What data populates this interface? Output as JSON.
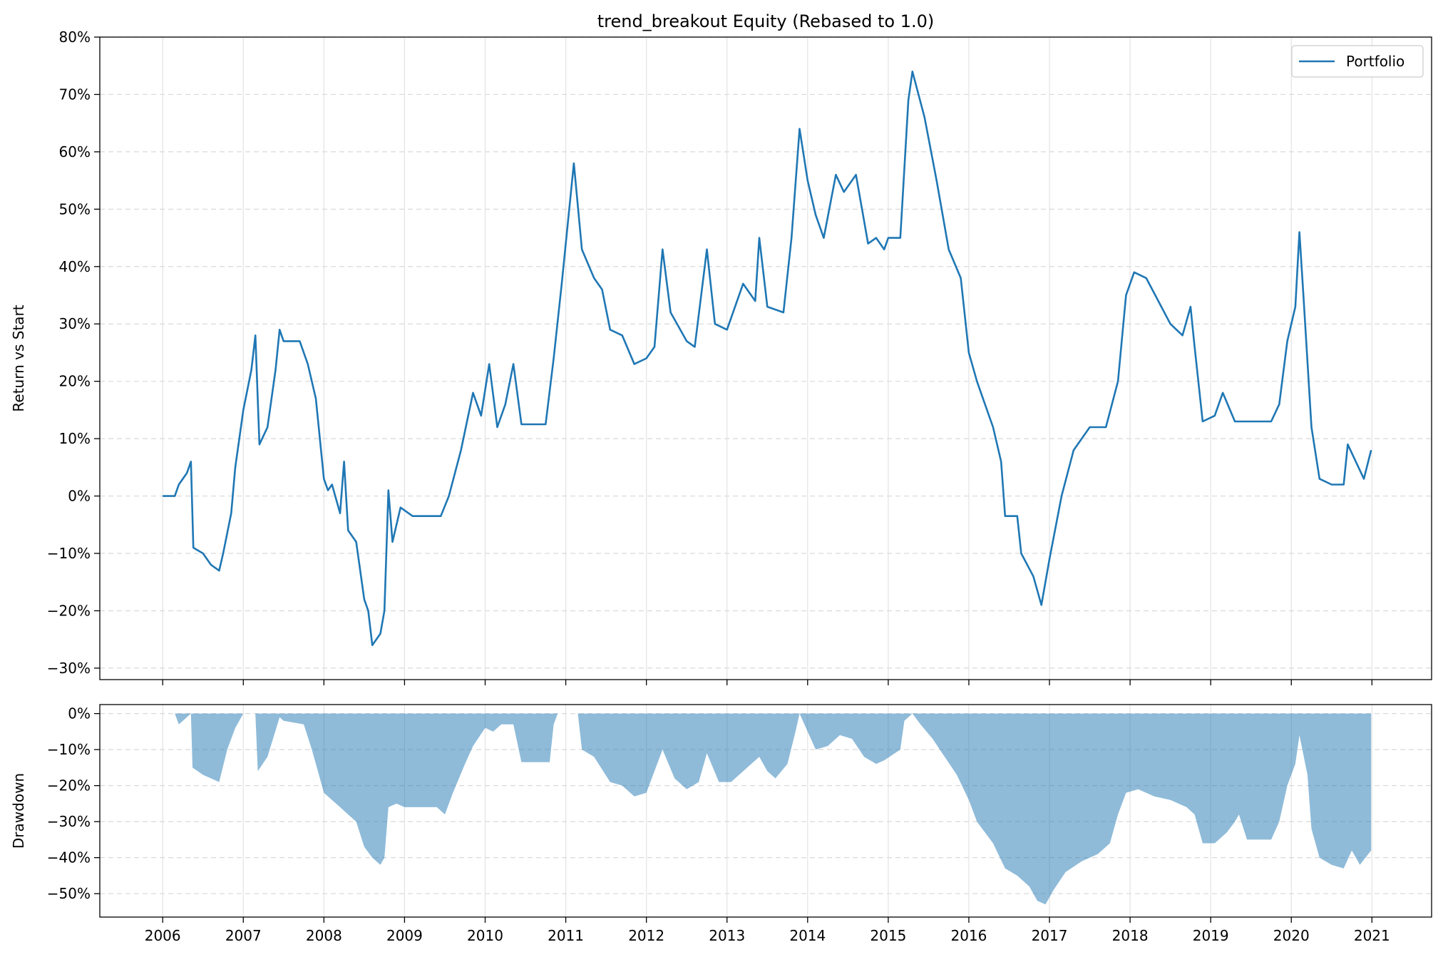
{
  "chart_data": [
    {
      "type": "line",
      "title": "trend_breakout Equity (Rebased to 1.0)",
      "xlabel": "",
      "ylabel": "Return vs Start",
      "ylim": [
        -0.32,
        0.8
      ],
      "xlim": [
        2005.22,
        2021.74
      ],
      "grid": true,
      "legend_position": "top-right",
      "y_ticks": [
        -0.3,
        -0.2,
        -0.1,
        0.0,
        0.1,
        0.2,
        0.3,
        0.4,
        0.5,
        0.6,
        0.7,
        0.8
      ],
      "y_tick_labels": [
        "−30%",
        "−20%",
        "−10%",
        "0%",
        "10%",
        "20%",
        "30%",
        "40%",
        "50%",
        "60%",
        "70%",
        "80%"
      ],
      "series": [
        {
          "name": "Portfolio",
          "color": "#1f77b4",
          "points": [
            [
              2006.0,
              0.0
            ],
            [
              2006.15,
              0.0
            ],
            [
              2006.2,
              0.02
            ],
            [
              2006.3,
              0.04
            ],
            [
              2006.35,
              0.06
            ],
            [
              2006.38,
              -0.09
            ],
            [
              2006.5,
              -0.1
            ],
            [
              2006.6,
              -0.12
            ],
            [
              2006.7,
              -0.13
            ],
            [
              2006.75,
              -0.1
            ],
            [
              2006.85,
              -0.03
            ],
            [
              2006.9,
              0.05
            ],
            [
              2007.0,
              0.15
            ],
            [
              2007.1,
              0.22
            ],
            [
              2007.15,
              0.28
            ],
            [
              2007.2,
              0.09
            ],
            [
              2007.3,
              0.12
            ],
            [
              2007.4,
              0.22
            ],
            [
              2007.45,
              0.29
            ],
            [
              2007.5,
              0.27
            ],
            [
              2007.7,
              0.27
            ],
            [
              2007.8,
              0.23
            ],
            [
              2007.9,
              0.17
            ],
            [
              2008.0,
              0.03
            ],
            [
              2008.05,
              0.01
            ],
            [
              2008.1,
              0.02
            ],
            [
              2008.2,
              -0.03
            ],
            [
              2008.25,
              0.06
            ],
            [
              2008.3,
              -0.06
            ],
            [
              2008.4,
              -0.08
            ],
            [
              2008.5,
              -0.18
            ],
            [
              2008.55,
              -0.2
            ],
            [
              2008.6,
              -0.26
            ],
            [
              2008.7,
              -0.24
            ],
            [
              2008.75,
              -0.2
            ],
            [
              2008.8,
              0.01
            ],
            [
              2008.85,
              -0.08
            ],
            [
              2008.95,
              -0.02
            ],
            [
              2009.1,
              -0.035
            ],
            [
              2009.45,
              -0.035
            ],
            [
              2009.55,
              0.0
            ],
            [
              2009.7,
              0.08
            ],
            [
              2009.85,
              0.18
            ],
            [
              2009.95,
              0.14
            ],
            [
              2010.05,
              0.23
            ],
            [
              2010.15,
              0.12
            ],
            [
              2010.25,
              0.16
            ],
            [
              2010.35,
              0.23
            ],
            [
              2010.45,
              0.125
            ],
            [
              2010.75,
              0.125
            ],
            [
              2010.85,
              0.24
            ],
            [
              2010.95,
              0.37
            ],
            [
              2011.1,
              0.58
            ],
            [
              2011.2,
              0.43
            ],
            [
              2011.35,
              0.38
            ],
            [
              2011.45,
              0.36
            ],
            [
              2011.55,
              0.29
            ],
            [
              2011.7,
              0.28
            ],
            [
              2011.85,
              0.23
            ],
            [
              2012.0,
              0.24
            ],
            [
              2012.1,
              0.26
            ],
            [
              2012.2,
              0.43
            ],
            [
              2012.3,
              0.32
            ],
            [
              2012.5,
              0.27
            ],
            [
              2012.6,
              0.26
            ],
            [
              2012.75,
              0.43
            ],
            [
              2012.85,
              0.3
            ],
            [
              2013.0,
              0.29
            ],
            [
              2013.2,
              0.37
            ],
            [
              2013.35,
              0.34
            ],
            [
              2013.4,
              0.45
            ],
            [
              2013.5,
              0.33
            ],
            [
              2013.7,
              0.32
            ],
            [
              2013.8,
              0.45
            ],
            [
              2013.9,
              0.64
            ],
            [
              2014.0,
              0.55
            ],
            [
              2014.1,
              0.49
            ],
            [
              2014.2,
              0.45
            ],
            [
              2014.35,
              0.56
            ],
            [
              2014.45,
              0.53
            ],
            [
              2014.6,
              0.56
            ],
            [
              2014.75,
              0.44
            ],
            [
              2014.85,
              0.45
            ],
            [
              2014.95,
              0.43
            ],
            [
              2015.0,
              0.45
            ],
            [
              2015.15,
              0.45
            ],
            [
              2015.25,
              0.69
            ],
            [
              2015.3,
              0.74
            ],
            [
              2015.45,
              0.66
            ],
            [
              2015.6,
              0.55
            ],
            [
              2015.75,
              0.43
            ],
            [
              2015.9,
              0.38
            ],
            [
              2016.0,
              0.25
            ],
            [
              2016.1,
              0.2
            ],
            [
              2016.2,
              0.16
            ],
            [
              2016.3,
              0.12
            ],
            [
              2016.4,
              0.06
            ],
            [
              2016.45,
              -0.035
            ],
            [
              2016.6,
              -0.035
            ],
            [
              2016.65,
              -0.1
            ],
            [
              2016.8,
              -0.14
            ],
            [
              2016.9,
              -0.19
            ],
            [
              2017.0,
              -0.11
            ],
            [
              2017.15,
              0.0
            ],
            [
              2017.3,
              0.08
            ],
            [
              2017.5,
              0.12
            ],
            [
              2017.7,
              0.12
            ],
            [
              2017.85,
              0.2
            ],
            [
              2017.95,
              0.35
            ],
            [
              2018.05,
              0.39
            ],
            [
              2018.2,
              0.38
            ],
            [
              2018.35,
              0.34
            ],
            [
              2018.5,
              0.3
            ],
            [
              2018.65,
              0.28
            ],
            [
              2018.75,
              0.33
            ],
            [
              2018.8,
              0.26
            ],
            [
              2018.9,
              0.13
            ],
            [
              2019.05,
              0.14
            ],
            [
              2019.15,
              0.18
            ],
            [
              2019.3,
              0.13
            ],
            [
              2019.45,
              0.13
            ],
            [
              2019.6,
              0.13
            ],
            [
              2019.75,
              0.13
            ],
            [
              2019.85,
              0.16
            ],
            [
              2019.95,
              0.27
            ],
            [
              2020.05,
              0.33
            ],
            [
              2020.1,
              0.46
            ],
            [
              2020.15,
              0.35
            ],
            [
              2020.25,
              0.12
            ],
            [
              2020.35,
              0.03
            ],
            [
              2020.5,
              0.02
            ],
            [
              2020.65,
              0.02
            ],
            [
              2020.7,
              0.09
            ],
            [
              2020.8,
              0.06
            ],
            [
              2020.9,
              0.03
            ],
            [
              2020.99,
              0.08
            ]
          ]
        }
      ]
    },
    {
      "type": "area",
      "title": "",
      "xlabel": "",
      "ylabel": "Drawdown",
      "ylim": [
        -0.565,
        0.025
      ],
      "xlim": [
        2005.22,
        2021.74
      ],
      "grid": true,
      "y_ticks": [
        -0.5,
        -0.4,
        -0.3,
        -0.2,
        -0.1,
        0.0
      ],
      "y_tick_labels": [
        "−50%",
        "−40%",
        "−30%",
        "−20%",
        "−10%",
        "0%"
      ],
      "x_ticks": [
        2006,
        2007,
        2008,
        2009,
        2010,
        2011,
        2012,
        2013,
        2014,
        2015,
        2016,
        2017,
        2018,
        2019,
        2020,
        2021
      ],
      "x_tick_labels": [
        "2006",
        "2007",
        "2008",
        "2009",
        "2010",
        "2011",
        "2012",
        "2013",
        "2014",
        "2015",
        "2016",
        "2017",
        "2018",
        "2019",
        "2020",
        "2021"
      ],
      "series": [
        {
          "name": "",
          "color": "#1f77b4",
          "fill_opacity": 0.5,
          "points": [
            [
              2006.0,
              0.0
            ],
            [
              2006.15,
              0.0
            ],
            [
              2006.2,
              -0.03
            ],
            [
              2006.35,
              0.0
            ],
            [
              2006.37,
              -0.15
            ],
            [
              2006.5,
              -0.17
            ],
            [
              2006.7,
              -0.19
            ],
            [
              2006.8,
              -0.1
            ],
            [
              2006.9,
              -0.04
            ],
            [
              2007.0,
              0.0
            ],
            [
              2007.15,
              0.0
            ],
            [
              2007.18,
              -0.16
            ],
            [
              2007.3,
              -0.12
            ],
            [
              2007.45,
              -0.01
            ],
            [
              2007.5,
              -0.02
            ],
            [
              2007.75,
              -0.03
            ],
            [
              2007.85,
              -0.1
            ],
            [
              2007.95,
              -0.18
            ],
            [
              2008.0,
              -0.22
            ],
            [
              2008.2,
              -0.26
            ],
            [
              2008.3,
              -0.28
            ],
            [
              2008.4,
              -0.3
            ],
            [
              2008.5,
              -0.37
            ],
            [
              2008.6,
              -0.4
            ],
            [
              2008.7,
              -0.42
            ],
            [
              2008.75,
              -0.4
            ],
            [
              2008.8,
              -0.26
            ],
            [
              2008.9,
              -0.25
            ],
            [
              2009.0,
              -0.26
            ],
            [
              2009.4,
              -0.26
            ],
            [
              2009.5,
              -0.28
            ],
            [
              2009.6,
              -0.22
            ],
            [
              2009.75,
              -0.14
            ],
            [
              2009.85,
              -0.09
            ],
            [
              2010.0,
              -0.04
            ],
            [
              2010.1,
              -0.05
            ],
            [
              2010.2,
              -0.03
            ],
            [
              2010.35,
              -0.03
            ],
            [
              2010.45,
              -0.135
            ],
            [
              2010.8,
              -0.135
            ],
            [
              2010.85,
              -0.03
            ],
            [
              2010.9,
              0.0
            ],
            [
              2011.15,
              0.0
            ],
            [
              2011.2,
              -0.1
            ],
            [
              2011.35,
              -0.12
            ],
            [
              2011.55,
              -0.19
            ],
            [
              2011.7,
              -0.2
            ],
            [
              2011.85,
              -0.23
            ],
            [
              2012.0,
              -0.22
            ],
            [
              2012.2,
              -0.1
            ],
            [
              2012.35,
              -0.18
            ],
            [
              2012.5,
              -0.21
            ],
            [
              2012.65,
              -0.19
            ],
            [
              2012.75,
              -0.11
            ],
            [
              2012.9,
              -0.19
            ],
            [
              2013.05,
              -0.19
            ],
            [
              2013.25,
              -0.15
            ],
            [
              2013.4,
              -0.12
            ],
            [
              2013.5,
              -0.16
            ],
            [
              2013.6,
              -0.18
            ],
            [
              2013.75,
              -0.14
            ],
            [
              2013.85,
              -0.05
            ],
            [
              2013.9,
              0.0
            ],
            [
              2014.0,
              -0.05
            ],
            [
              2014.1,
              -0.1
            ],
            [
              2014.25,
              -0.09
            ],
            [
              2014.4,
              -0.06
            ],
            [
              2014.55,
              -0.07
            ],
            [
              2014.7,
              -0.12
            ],
            [
              2014.85,
              -0.14
            ],
            [
              2014.95,
              -0.13
            ],
            [
              2015.15,
              -0.1
            ],
            [
              2015.2,
              -0.02
            ],
            [
              2015.3,
              0.0
            ],
            [
              2015.4,
              -0.03
            ],
            [
              2015.55,
              -0.07
            ],
            [
              2015.7,
              -0.12
            ],
            [
              2015.85,
              -0.17
            ],
            [
              2016.0,
              -0.24
            ],
            [
              2016.1,
              -0.3
            ],
            [
              2016.3,
              -0.36
            ],
            [
              2016.45,
              -0.43
            ],
            [
              2016.6,
              -0.45
            ],
            [
              2016.75,
              -0.48
            ],
            [
              2016.85,
              -0.52
            ],
            [
              2016.95,
              -0.53
            ],
            [
              2017.05,
              -0.49
            ],
            [
              2017.2,
              -0.44
            ],
            [
              2017.4,
              -0.41
            ],
            [
              2017.6,
              -0.39
            ],
            [
              2017.75,
              -0.36
            ],
            [
              2017.85,
              -0.28
            ],
            [
              2017.95,
              -0.22
            ],
            [
              2018.1,
              -0.21
            ],
            [
              2018.3,
              -0.23
            ],
            [
              2018.5,
              -0.24
            ],
            [
              2018.7,
              -0.26
            ],
            [
              2018.8,
              -0.28
            ],
            [
              2018.9,
              -0.36
            ],
            [
              2019.05,
              -0.36
            ],
            [
              2019.2,
              -0.33
            ],
            [
              2019.3,
              -0.3
            ],
            [
              2019.35,
              -0.28
            ],
            [
              2019.45,
              -0.35
            ],
            [
              2019.75,
              -0.35
            ],
            [
              2019.85,
              -0.3
            ],
            [
              2019.95,
              -0.2
            ],
            [
              2020.05,
              -0.14
            ],
            [
              2020.1,
              -0.06
            ],
            [
              2020.2,
              -0.17
            ],
            [
              2020.25,
              -0.32
            ],
            [
              2020.35,
              -0.4
            ],
            [
              2020.5,
              -0.42
            ],
            [
              2020.65,
              -0.43
            ],
            [
              2020.75,
              -0.38
            ],
            [
              2020.85,
              -0.42
            ],
            [
              2020.99,
              -0.38
            ]
          ]
        }
      ]
    }
  ]
}
